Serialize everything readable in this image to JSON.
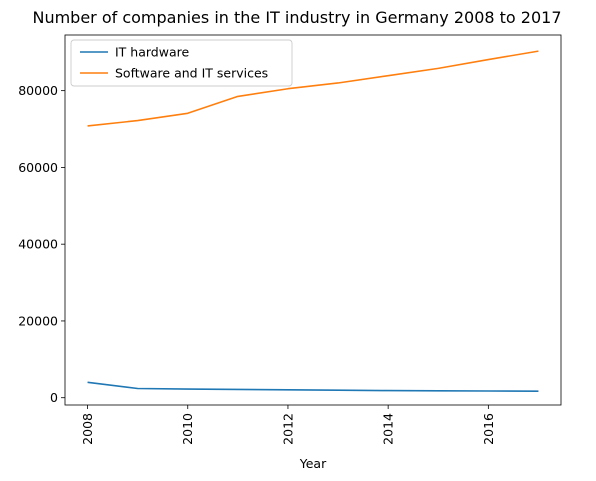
{
  "chart_data": {
    "type": "line",
    "title": "Number of companies in the IT industry in Germany 2008 to 2017",
    "xlabel": "Year",
    "ylabel": "",
    "x": [
      2008,
      2009,
      2010,
      2011,
      2012,
      2013,
      2014,
      2015,
      2016,
      2017
    ],
    "xlim": [
      2007.55,
      2017.45
    ],
    "ylim": [
      -1900,
      94500
    ],
    "xticks": [
      2008,
      2010,
      2012,
      2014,
      2016
    ],
    "yticks": [
      0,
      20000,
      40000,
      60000,
      80000
    ],
    "grid": false,
    "legend": "top-left",
    "series": [
      {
        "name": "IT hardware",
        "color": "#1f77b4",
        "values": [
          4000,
          2400,
          2250,
          2150,
          2050,
          1950,
          1850,
          1800,
          1750,
          1700
        ]
      },
      {
        "name": "Software and IT services",
        "color": "#ff7f0e",
        "values": [
          70800,
          72200,
          74100,
          78500,
          80500,
          82000,
          83900,
          85800,
          88100,
          90300
        ]
      }
    ]
  }
}
